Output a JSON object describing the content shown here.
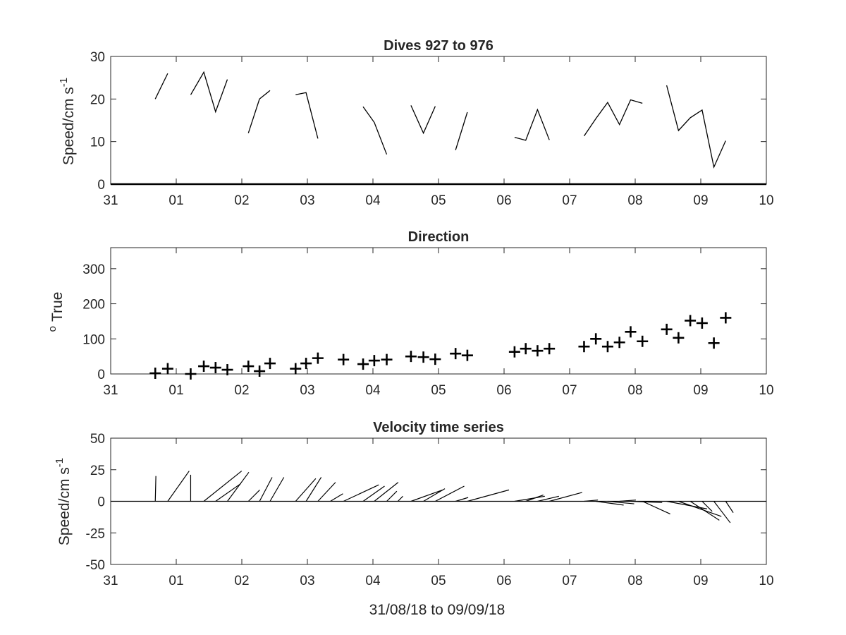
{
  "xlabel": "31/08/18 to 09/09/18",
  "x_tick_labels": [
    "31",
    "01",
    "02",
    "03",
    "04",
    "05",
    "06",
    "07",
    "08",
    "09",
    "10"
  ],
  "chart_data": [
    {
      "type": "line",
      "title": "Dives 927 to 976",
      "ylabel_main": "Speed/cm s",
      "ylabel_sup": "-1",
      "xlim": [
        0,
        10
      ],
      "ylim": [
        0,
        30
      ],
      "yticks": [
        0,
        10,
        20,
        30
      ],
      "grid": false,
      "segments": [
        [
          [
            0.68,
            20.0
          ],
          [
            0.87,
            26.0
          ]
        ],
        [
          [
            1.22,
            21.0
          ],
          [
            1.42,
            26.3
          ],
          [
            1.6,
            17.0
          ],
          [
            1.78,
            24.6
          ]
        ],
        [
          [
            2.1,
            12.0
          ],
          [
            2.27,
            20.0
          ],
          [
            2.43,
            22.0
          ]
        ],
        [
          [
            2.82,
            21.0
          ],
          [
            2.98,
            21.5
          ],
          [
            3.16,
            10.7
          ]
        ],
        [
          [
            3.85,
            18.2
          ],
          [
            4.02,
            14.5
          ],
          [
            4.21,
            7.0
          ]
        ],
        [
          [
            4.58,
            18.5
          ],
          [
            4.77,
            12.0
          ],
          [
            4.95,
            18.3
          ]
        ],
        [
          [
            5.26,
            8.0
          ],
          [
            5.44,
            16.9
          ]
        ],
        [
          [
            6.16,
            11.0
          ],
          [
            6.33,
            10.3
          ],
          [
            6.51,
            17.5
          ],
          [
            6.69,
            10.4
          ]
        ],
        [
          [
            7.22,
            11.3
          ],
          [
            7.4,
            15.4
          ],
          [
            7.58,
            19.2
          ],
          [
            7.76,
            14.0
          ],
          [
            7.93,
            19.8
          ],
          [
            8.11,
            19.0
          ]
        ],
        [
          [
            8.48,
            23.2
          ],
          [
            8.66,
            12.6
          ],
          [
            8.84,
            15.6
          ],
          [
            9.02,
            17.4
          ],
          [
            9.2,
            4.0
          ],
          [
            9.38,
            10.2
          ]
        ]
      ]
    },
    {
      "type": "scatter",
      "title": "Direction",
      "ylabel_main": "True",
      "ylabel_sup": "o",
      "xlim": [
        0,
        10
      ],
      "ylim": [
        0,
        360
      ],
      "yticks": [
        0,
        100,
        200,
        300
      ],
      "grid": false,
      "marker": "+",
      "points": [
        [
          0.68,
          2
        ],
        [
          0.87,
          15
        ],
        [
          1.22,
          0
        ],
        [
          1.42,
          22
        ],
        [
          1.6,
          18
        ],
        [
          1.78,
          12
        ],
        [
          2.1,
          22
        ],
        [
          2.27,
          8
        ],
        [
          2.43,
          30
        ],
        [
          2.82,
          15
        ],
        [
          2.98,
          30
        ],
        [
          3.16,
          45
        ],
        [
          3.55,
          41
        ],
        [
          3.85,
          28
        ],
        [
          4.02,
          38
        ],
        [
          4.21,
          41
        ],
        [
          4.58,
          50
        ],
        [
          4.77,
          48
        ],
        [
          4.95,
          42
        ],
        [
          5.26,
          58
        ],
        [
          5.44,
          53
        ],
        [
          6.16,
          63
        ],
        [
          6.33,
          72
        ],
        [
          6.51,
          66
        ],
        [
          6.69,
          72
        ],
        [
          7.22,
          78
        ],
        [
          7.4,
          100
        ],
        [
          7.58,
          78
        ],
        [
          7.76,
          90
        ],
        [
          7.93,
          120
        ],
        [
          8.11,
          93
        ],
        [
          8.48,
          127
        ],
        [
          8.66,
          103
        ],
        [
          8.84,
          152
        ],
        [
          9.02,
          145
        ],
        [
          9.2,
          88
        ],
        [
          9.38,
          160
        ]
      ]
    },
    {
      "type": "quiver",
      "title": "Velocity time series",
      "ylabel_main": "Speed/cm s",
      "ylabel_sup": "-1",
      "xlim": [
        0,
        10
      ],
      "ylim": [
        -50,
        50
      ],
      "yticks": [
        -50,
        -25,
        0,
        25,
        50
      ],
      "grid": false,
      "sticks": [
        [
          0.68,
          0.5,
          20
        ],
        [
          0.87,
          17,
          24
        ],
        [
          1.22,
          0,
          21
        ],
        [
          1.42,
          30,
          24
        ],
        [
          1.6,
          20,
          14
        ],
        [
          1.78,
          17,
          23
        ],
        [
          2.1,
          9,
          9
        ],
        [
          2.27,
          10,
          19
        ],
        [
          2.43,
          11,
          19
        ],
        [
          2.82,
          16,
          18
        ],
        [
          2.98,
          12,
          19
        ],
        [
          3.16,
          14,
          15
        ],
        [
          3.35,
          10,
          6
        ],
        [
          3.55,
          28,
          13
        ],
        [
          3.85,
          17,
          12
        ],
        [
          4.02,
          19,
          15
        ],
        [
          4.21,
          8,
          8
        ],
        [
          4.38,
          4,
          4
        ],
        [
          4.58,
          25,
          9
        ],
        [
          4.77,
          17,
          10
        ],
        [
          4.95,
          23,
          12
        ],
        [
          5.26,
          10,
          3
        ],
        [
          5.44,
          33,
          9
        ],
        [
          6.16,
          24,
          4
        ],
        [
          6.33,
          14,
          5
        ],
        [
          6.51,
          17,
          4
        ],
        [
          6.69,
          26,
          7
        ],
        [
          7.22,
          11,
          1
        ],
        [
          7.4,
          22,
          -3
        ],
        [
          7.58,
          21,
          -2
        ],
        [
          7.76,
          13,
          1
        ],
        [
          7.93,
          25,
          -1
        ],
        [
          8.11,
          22,
          -10
        ],
        [
          8.48,
          32,
          -6
        ],
        [
          8.66,
          34,
          -12
        ],
        [
          8.84,
          23,
          -15
        ],
        [
          9.02,
          8,
          -8
        ],
        [
          9.2,
          13,
          -17
        ],
        [
          9.38,
          6,
          -9
        ]
      ]
    }
  ]
}
